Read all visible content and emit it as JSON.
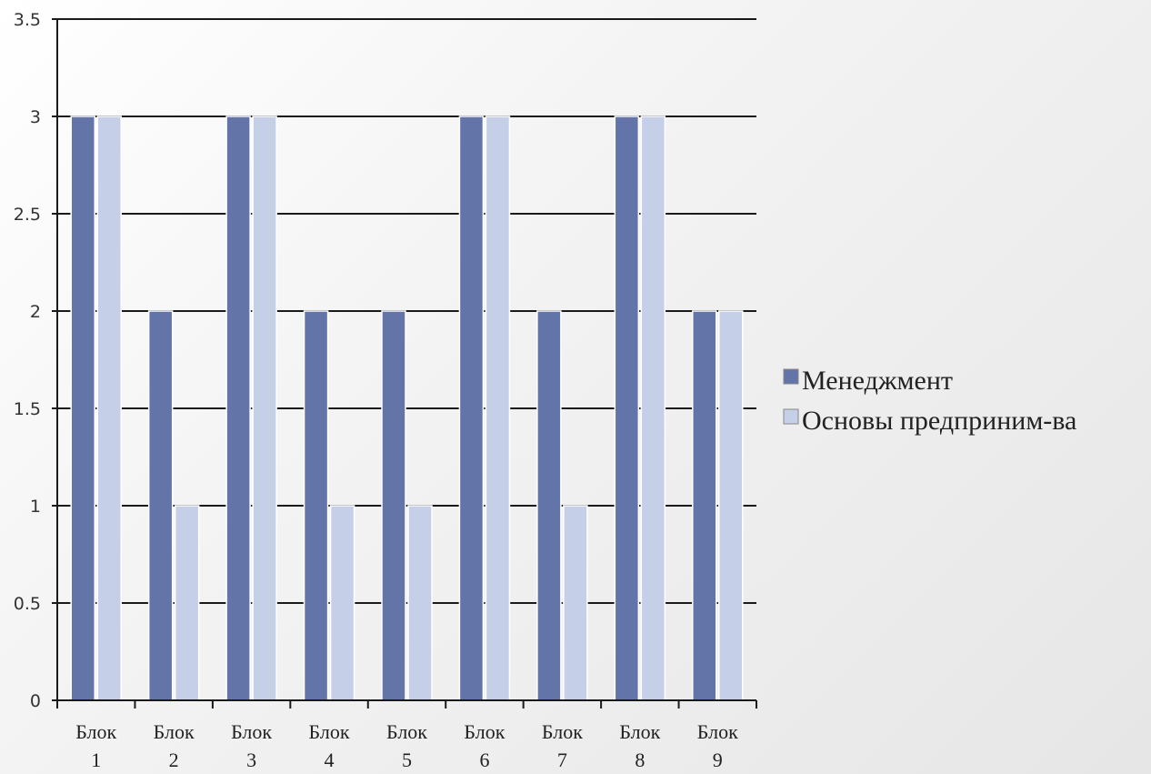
{
  "chart_data": {
    "type": "bar",
    "categories": [
      [
        "Блок",
        "1"
      ],
      [
        "Блок",
        "2"
      ],
      [
        "Блок",
        "3"
      ],
      [
        "Блок",
        "4"
      ],
      [
        "Блок",
        "5"
      ],
      [
        "Блок",
        "6"
      ],
      [
        "Блок",
        "7"
      ],
      [
        "Блок",
        "8"
      ],
      [
        "Блок",
        "9"
      ]
    ],
    "series": [
      {
        "name": "Менеджмент",
        "color": "#6274a8",
        "values": [
          3,
          2,
          3,
          2,
          2,
          3,
          2,
          3,
          2
        ]
      },
      {
        "name": "Основы предприним-ва",
        "color": "#c5cfe8",
        "values": [
          3,
          1,
          3,
          1,
          1,
          3,
          1,
          3,
          2
        ]
      }
    ],
    "ylim": [
      0,
      3.5
    ],
    "yticks": [
      "0",
      "0.5",
      "1",
      "1.5",
      "2",
      "2.5",
      "3",
      "3.5"
    ],
    "grid": true,
    "legend": "right",
    "title": "",
    "xlabel": "",
    "ylabel": ""
  }
}
